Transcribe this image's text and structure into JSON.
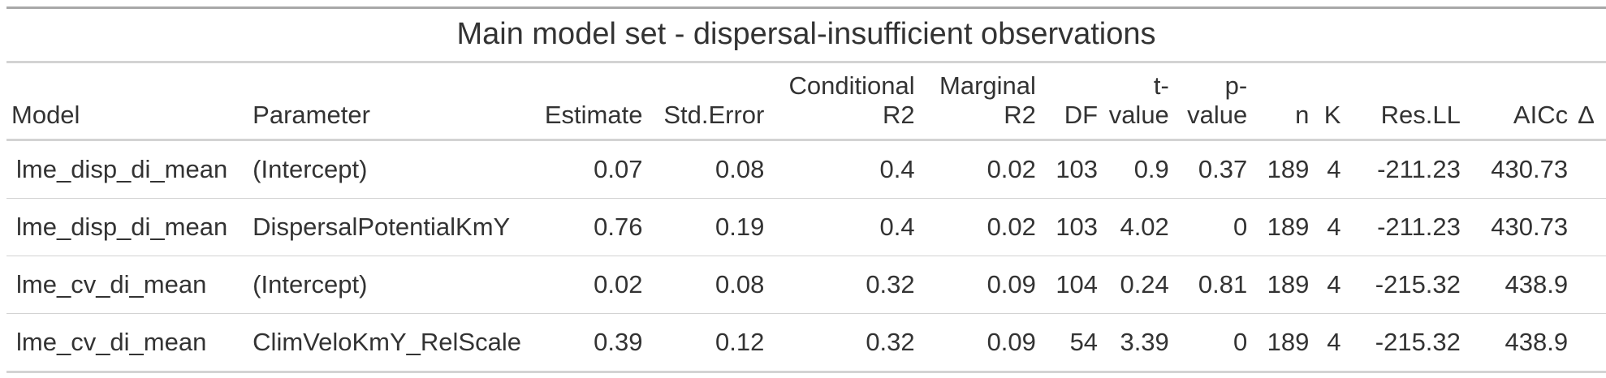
{
  "table": {
    "title": "Main model set - dispersal-insufficient observations",
    "columns": {
      "model": "Model",
      "parameter": "Parameter",
      "estimate": "Estimate",
      "std_error": "Std.Error",
      "conditional_r2_line1": "Conditional",
      "conditional_r2_line2": "R2",
      "marginal_r2_line1": "Marginal",
      "marginal_r2_line2": "R2",
      "df": "DF",
      "t_value_line1": "t-",
      "t_value_line2": "value",
      "p_value_line1": "p-",
      "p_value_line2": "value",
      "n": "n",
      "k": "K",
      "res_ll": "Res.LL",
      "aicc": "AICc",
      "delta": "Δ"
    },
    "rows": [
      {
        "model": "lme_disp_di_mean",
        "parameter": "(Intercept)",
        "estimate": "0.07",
        "std_error": "0.08",
        "conditional_r2": "0.4",
        "marginal_r2": "0.02",
        "df": "103",
        "t_value": "0.9",
        "p_value": "0.37",
        "n": "189",
        "k": "4",
        "res_ll": "-211.23",
        "aicc": "430.73"
      },
      {
        "model": "lme_disp_di_mean",
        "parameter": "DispersalPotentialKmY",
        "estimate": "0.76",
        "std_error": "0.19",
        "conditional_r2": "0.4",
        "marginal_r2": "0.02",
        "df": "103",
        "t_value": "4.02",
        "p_value": "0",
        "n": "189",
        "k": "4",
        "res_ll": "-211.23",
        "aicc": "430.73"
      },
      {
        "model": "lme_cv_di_mean",
        "parameter": "(Intercept)",
        "estimate": "0.02",
        "std_error": "0.08",
        "conditional_r2": "0.32",
        "marginal_r2": "0.09",
        "df": "104",
        "t_value": "0.24",
        "p_value": "0.81",
        "n": "189",
        "k": "4",
        "res_ll": "-215.32",
        "aicc": "438.9"
      },
      {
        "model": "lme_cv_di_mean",
        "parameter": "ClimVeloKmY_RelScale",
        "estimate": "0.39",
        "std_error": "0.12",
        "conditional_r2": "0.32",
        "marginal_r2": "0.09",
        "df": "54",
        "t_value": "3.39",
        "p_value": "0",
        "n": "189",
        "k": "4",
        "res_ll": "-215.32",
        "aicc": "438.9"
      }
    ]
  }
}
